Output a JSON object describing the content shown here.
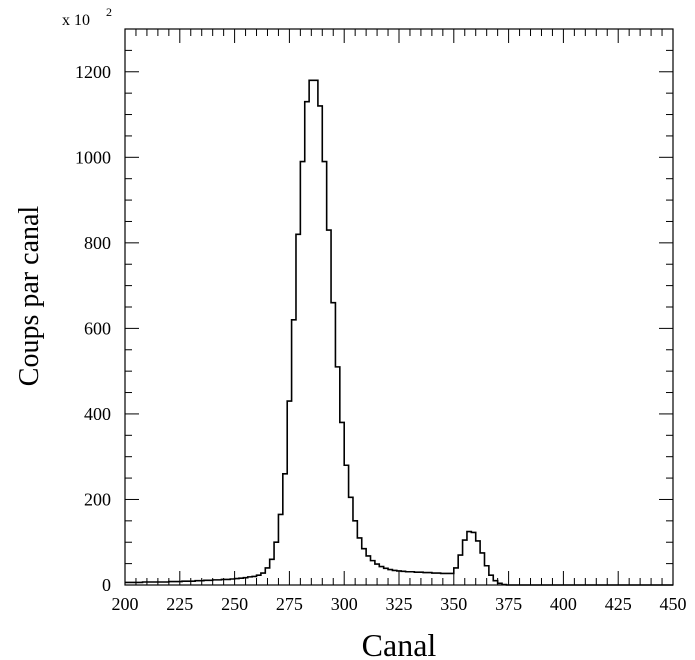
{
  "chart_data": {
    "type": "line",
    "title": "",
    "xlabel": "Canal",
    "ylabel": "Coups par canal",
    "y_multiplier_label": "x 10",
    "y_multiplier_exponent": "2",
    "xlim": [
      200,
      450
    ],
    "ylim": [
      0,
      1300
    ],
    "x_ticks": [
      200,
      225,
      250,
      275,
      300,
      325,
      350,
      375,
      400,
      425,
      450
    ],
    "y_ticks": [
      0,
      200,
      400,
      600,
      800,
      1000,
      1200
    ],
    "grid": false,
    "legend": "none",
    "histogram_style": "step",
    "x_step": 2,
    "series": [
      {
        "x": [
          200,
          202,
          204,
          206,
          208,
          210,
          212,
          214,
          216,
          218,
          220,
          222,
          224,
          226,
          228,
          230,
          232,
          234,
          236,
          238,
          240,
          242,
          244,
          246,
          248,
          250,
          252,
          254,
          256,
          258,
          260,
          262,
          264,
          266,
          268,
          270,
          272,
          274,
          276,
          278,
          280,
          282,
          284,
          286,
          288,
          290,
          292,
          294,
          296,
          298,
          300,
          302,
          304,
          306,
          308,
          310,
          312,
          314,
          316,
          318,
          320,
          322,
          324,
          326,
          328,
          330,
          332,
          334,
          336,
          338,
          340,
          342,
          344,
          346,
          348,
          350,
          352,
          354,
          356,
          358,
          360,
          362,
          364,
          366,
          368,
          370,
          372,
          374,
          376,
          378,
          380,
          382,
          384,
          386,
          388,
          390,
          392,
          394,
          396,
          398,
          400,
          402,
          404,
          406,
          408,
          410,
          412,
          414,
          416,
          418,
          420,
          422,
          424,
          426,
          428,
          430,
          432,
          434,
          436,
          438,
          440,
          442,
          444,
          446,
          448
        ],
        "values": [
          6,
          6,
          6,
          6,
          7,
          7,
          7,
          7,
          7,
          7,
          8,
          8,
          8,
          9,
          9,
          9,
          10,
          10,
          11,
          11,
          12,
          12,
          13,
          13,
          14,
          15,
          16,
          17,
          19,
          20,
          23,
          28,
          40,
          60,
          100,
          165,
          260,
          430,
          620,
          820,
          990,
          1130,
          1180,
          1180,
          1120,
          990,
          830,
          660,
          510,
          380,
          280,
          205,
          150,
          110,
          85,
          68,
          57,
          49,
          43,
          39,
          36,
          34,
          33,
          32,
          31,
          31,
          30,
          30,
          29,
          29,
          28,
          28,
          27,
          27,
          27,
          40,
          70,
          105,
          125,
          123,
          103,
          75,
          45,
          23,
          10,
          4,
          1,
          0,
          0,
          0,
          0,
          0,
          0,
          0,
          0,
          0,
          0,
          0,
          0,
          0,
          0,
          0,
          0,
          0,
          0,
          0,
          0,
          0,
          0,
          0,
          0,
          0,
          0,
          0,
          0,
          0,
          0,
          0,
          0,
          0,
          0,
          0,
          0,
          0,
          0
        ]
      }
    ]
  }
}
